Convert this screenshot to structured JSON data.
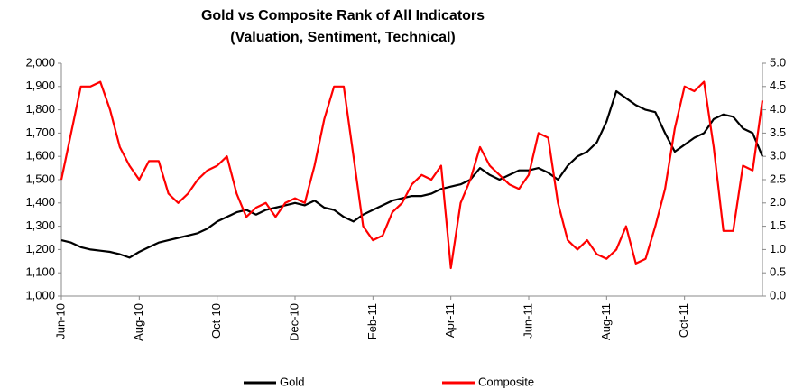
{
  "chart_data": {
    "type": "line",
    "title": "Gold vs Composite Rank of All Indicators",
    "subtitle": "(Valuation, Sentiment, Technical)",
    "categories": [
      "Jun-10",
      null,
      null,
      null,
      null,
      null,
      null,
      null,
      "Aug-10",
      null,
      null,
      null,
      null,
      null,
      null,
      null,
      "Oct-10",
      null,
      null,
      null,
      null,
      null,
      null,
      null,
      "Dec-10",
      null,
      null,
      null,
      null,
      null,
      null,
      null,
      "Feb-11",
      null,
      null,
      null,
      null,
      null,
      null,
      null,
      "Apr-11",
      null,
      null,
      null,
      null,
      null,
      null,
      null,
      "Jun-11",
      null,
      null,
      null,
      null,
      null,
      null,
      null,
      "Aug-11",
      null,
      null,
      null,
      null,
      null,
      null,
      null,
      "Oct-11",
      null,
      null,
      null,
      null,
      null,
      null,
      null,
      null
    ],
    "series": [
      {
        "name": "Gold",
        "color": "#000000",
        "values": [
          1240,
          1230,
          1210,
          1200,
          1195,
          1190,
          1180,
          1165,
          1190,
          1210,
          1230,
          1240,
          1250,
          1260,
          1270,
          1290,
          1320,
          1340,
          1360,
          1370,
          1350,
          1370,
          1380,
          1390,
          1400,
          1390,
          1410,
          1380,
          1370,
          1340,
          1320,
          1350,
          1370,
          1390,
          1410,
          1420,
          1430,
          1430,
          1440,
          1460,
          1470,
          1480,
          1500,
          1550,
          1520,
          1500,
          1520,
          1540,
          1540,
          1550,
          1530,
          1500,
          1560,
          1600,
          1620,
          1660,
          1750,
          1880,
          1850,
          1820,
          1800,
          1790,
          1700,
          1620,
          1650,
          1680,
          1700,
          1760,
          1780,
          1770,
          1720,
          1700,
          1600
        ]
      },
      {
        "name": "Composite",
        "color": "#ff0000",
        "axis": "y2",
        "values": [
          2.5,
          3.5,
          4.5,
          4.5,
          4.6,
          4.0,
          3.2,
          2.8,
          2.5,
          2.9,
          2.9,
          2.2,
          2.0,
          2.2,
          2.5,
          2.7,
          2.8,
          3.0,
          2.2,
          1.7,
          1.9,
          2.0,
          1.7,
          2.0,
          2.1,
          2.0,
          2.8,
          3.8,
          4.5,
          4.5,
          3.0,
          1.5,
          1.2,
          1.3,
          1.8,
          2.0,
          2.4,
          2.6,
          2.5,
          2.8,
          0.6,
          2.0,
          2.5,
          3.2,
          2.8,
          2.6,
          2.4,
          2.3,
          2.6,
          3.5,
          3.4,
          2.0,
          1.2,
          1.0,
          1.2,
          0.9,
          0.8,
          1.0,
          1.5,
          0.7,
          0.8,
          1.5,
          2.3,
          3.6,
          4.5,
          4.4,
          4.6,
          3.2,
          1.4,
          1.4,
          2.8,
          2.7,
          4.2
        ]
      }
    ],
    "ylim": [
      1000,
      2000
    ],
    "yticks": [
      {
        "value": 1000,
        "label": "1,000"
      },
      {
        "value": 1100,
        "label": "1,100"
      },
      {
        "value": 1200,
        "label": "1,200"
      },
      {
        "value": 1300,
        "label": "1,300"
      },
      {
        "value": 1400,
        "label": "1,400"
      },
      {
        "value": 1500,
        "label": "1,500"
      },
      {
        "value": 1600,
        "label": "1,600"
      },
      {
        "value": 1700,
        "label": "1,700"
      },
      {
        "value": 1800,
        "label": "1,800"
      },
      {
        "value": 1900,
        "label": "1,900"
      },
      {
        "value": 2000,
        "label": "2,000"
      }
    ],
    "y2lim": [
      0,
      5
    ],
    "y2ticks": [
      {
        "value": 0,
        "label": "0.0"
      },
      {
        "value": 0.5,
        "label": "0.5"
      },
      {
        "value": 1,
        "label": "1.0"
      },
      {
        "value": 1.5,
        "label": "1.5"
      },
      {
        "value": 2,
        "label": "2.0"
      },
      {
        "value": 2.5,
        "label": "2.5"
      },
      {
        "value": 3,
        "label": "3.0"
      },
      {
        "value": 3.5,
        "label": "3.5"
      },
      {
        "value": 4,
        "label": "4.0"
      },
      {
        "value": 4.5,
        "label": "4.5"
      },
      {
        "value": 5,
        "label": "5.0"
      }
    ],
    "legend": "bottom",
    "grid": false
  }
}
